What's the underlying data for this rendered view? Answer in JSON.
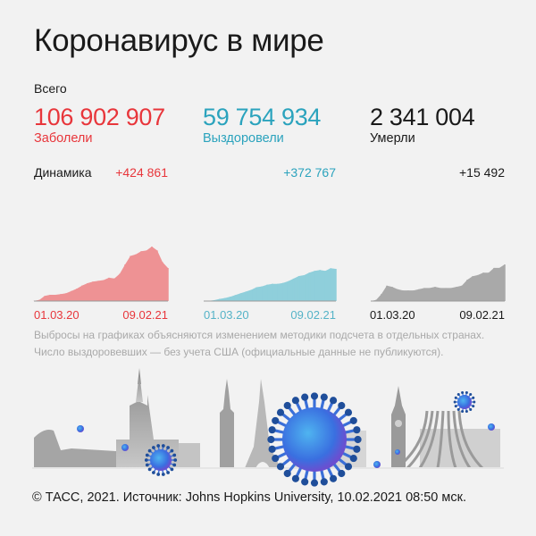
{
  "title": "Коронавирус в мире",
  "total_label": "Всего",
  "stats": [
    {
      "value": "106 902 907",
      "label": "Заболели",
      "delta": "+424 861",
      "color": "#e8363b",
      "fill": "#ee9294"
    },
    {
      "value": "59 754 934",
      "label": "Выздоровели",
      "delta": "+372 767",
      "color": "#2ba3bd",
      "fill": "#8fcfdb"
    },
    {
      "value": "2 341 004",
      "label": "Умерли",
      "delta": "+15 492",
      "color": "#1a1a1a",
      "fill": "#a9a9a9"
    }
  ],
  "dynamics_label": "Динамика",
  "chart_data": [
    {
      "type": "area",
      "series": "Заболели",
      "xlim": [
        "01.03.20",
        "09.02.21"
      ],
      "tick_labels": [
        "01.03.20",
        "09.02.21"
      ],
      "x": [
        "01.03.20",
        "15.03.20",
        "29.03.20",
        "12.04.20",
        "26.04.20",
        "10.05.20",
        "24.05.20",
        "07.06.20",
        "21.06.20",
        "05.07.20",
        "19.07.20",
        "02.08.20",
        "16.08.20",
        "30.08.20",
        "13.09.20",
        "27.09.20",
        "11.10.20",
        "25.10.20",
        "08.11.20",
        "22.11.20",
        "06.12.20",
        "20.12.20",
        "03.01.21",
        "17.01.21",
        "31.01.21",
        "09.02.21"
      ],
      "values": [
        2000,
        15000,
        65000,
        80000,
        80000,
        90000,
        100000,
        130000,
        160000,
        200000,
        230000,
        250000,
        260000,
        270000,
        300000,
        290000,
        350000,
        470000,
        580000,
        600000,
        640000,
        650000,
        700000,
        650000,
        500000,
        424861
      ]
    },
    {
      "type": "area",
      "series": "Выздоровели",
      "xlim": [
        "01.03.20",
        "09.02.21"
      ],
      "tick_labels": [
        "01.03.20",
        "09.02.21"
      ],
      "x": [
        "01.03.20",
        "15.03.20",
        "29.03.20",
        "12.04.20",
        "26.04.20",
        "10.05.20",
        "24.05.20",
        "07.06.20",
        "21.06.20",
        "05.07.20",
        "19.07.20",
        "02.08.20",
        "16.08.20",
        "30.08.20",
        "13.09.20",
        "27.09.20",
        "11.10.20",
        "25.10.20",
        "08.11.20",
        "22.11.20",
        "06.12.20",
        "20.12.20",
        "03.01.21",
        "17.01.21",
        "31.01.21",
        "09.02.21"
      ],
      "values": [
        0,
        2000,
        10000,
        25000,
        35000,
        50000,
        70000,
        90000,
        110000,
        130000,
        160000,
        170000,
        190000,
        200000,
        200000,
        210000,
        230000,
        260000,
        290000,
        300000,
        330000,
        350000,
        360000,
        350000,
        380000,
        372767
      ]
    },
    {
      "type": "area",
      "series": "Умерли",
      "xlim": [
        "01.03.20",
        "09.02.21"
      ],
      "tick_labels": [
        "01.03.20",
        "09.02.21"
      ],
      "x": [
        "01.03.20",
        "15.03.20",
        "29.03.20",
        "12.04.20",
        "26.04.20",
        "10.05.20",
        "24.05.20",
        "07.06.20",
        "21.06.20",
        "05.07.20",
        "19.07.20",
        "02.08.20",
        "16.08.20",
        "30.08.20",
        "13.09.20",
        "27.09.20",
        "11.10.20",
        "25.10.20",
        "08.11.20",
        "22.11.20",
        "06.12.20",
        "20.12.20",
        "03.01.21",
        "17.01.21",
        "31.01.21",
        "09.02.21"
      ],
      "values": [
        0,
        500,
        3000,
        6500,
        6000,
        5000,
        4500,
        4500,
        4500,
        5000,
        5500,
        5500,
        6000,
        5500,
        5500,
        5500,
        6000,
        6500,
        9000,
        10500,
        11000,
        12000,
        12000,
        14000,
        14000,
        15492
      ]
    }
  ],
  "notes": [
    "Выбросы на графиках объясняются изменением методики подсчета в отдельных странах.",
    "Число выздоровевших — без учета США (официальные данные не публикуются)."
  ],
  "footer": "© ТАСС, 2021. Источник: Johns Hopkins University, 10.02.2021 08:50 мск.",
  "icons": [
    "virus-icon",
    "colosseum-icon",
    "moscow-tower-icon",
    "empire-state-icon",
    "eiffel-tower-icon",
    "big-ben-icon",
    "brasilia-cathedral-icon"
  ]
}
